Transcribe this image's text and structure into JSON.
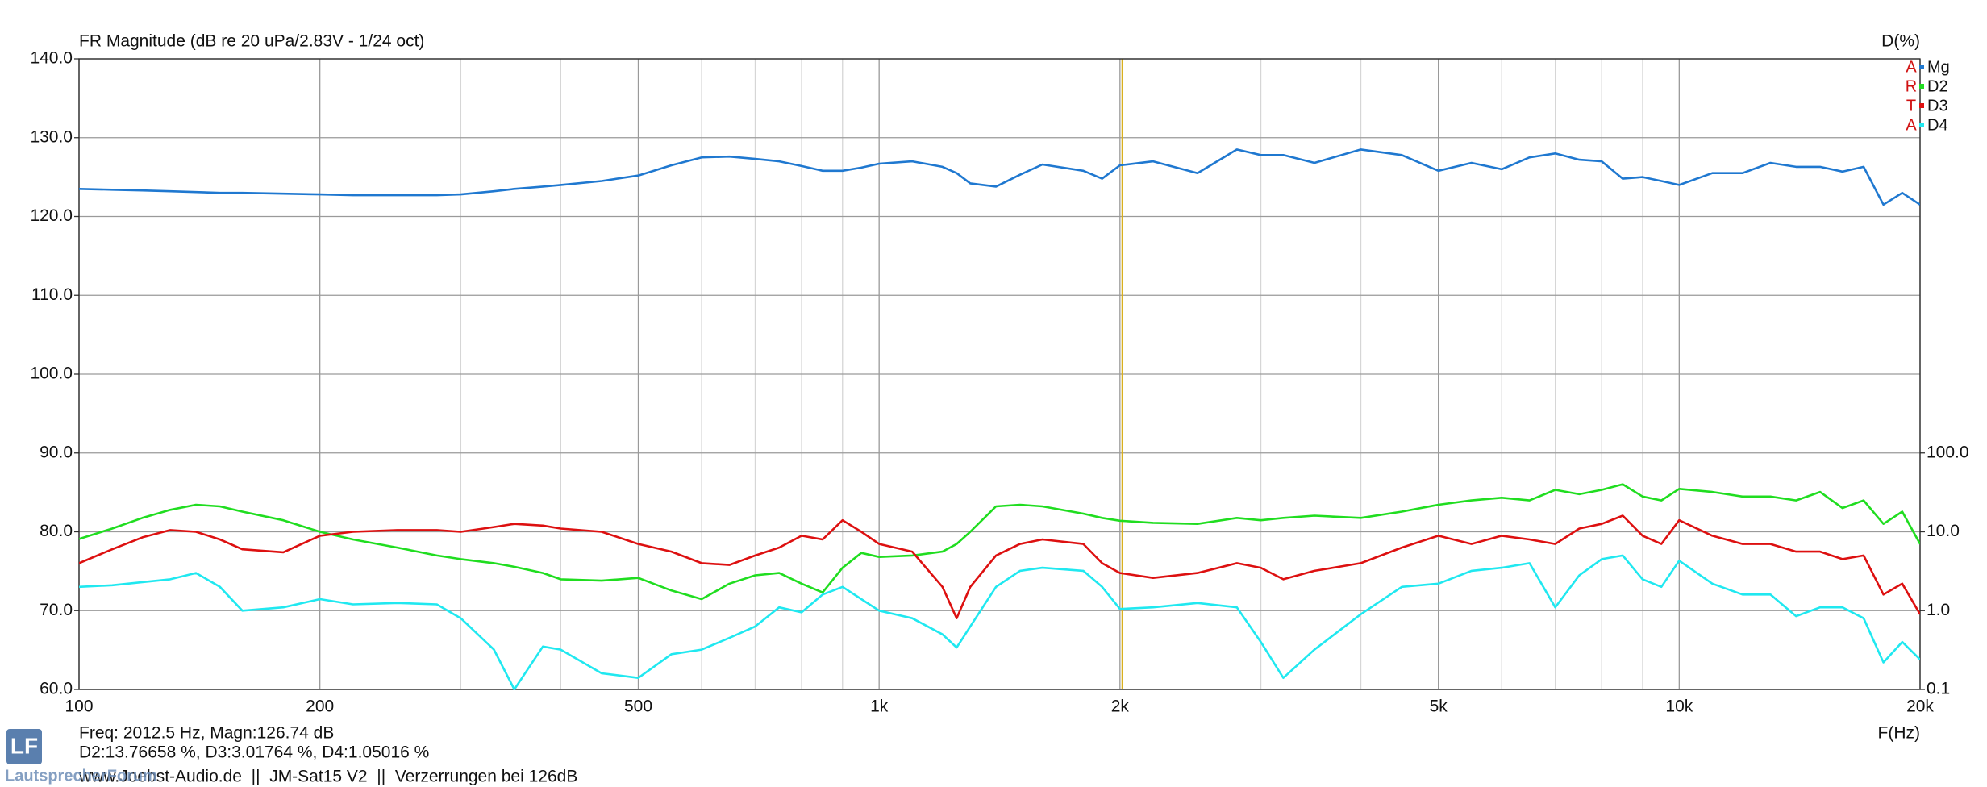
{
  "chart_data": {
    "type": "line",
    "title": "FR Magnitude (dB re 20 uPa/2.83V - 1/24 oct)",
    "y2_label": "D(%)",
    "x_label": "F(Hz)",
    "x_log": true,
    "y2_log": true,
    "grid": true,
    "legend_position": "top-right",
    "brand_letters": [
      "A",
      "R",
      "T",
      "A"
    ],
    "brand_color": "#d01010",
    "xlim": [
      100,
      20000
    ],
    "xticks": [
      100,
      200,
      500,
      {
        "value": 1000,
        "label": "1k"
      },
      {
        "value": 2000,
        "label": "2k"
      },
      {
        "value": 5000,
        "label": "5k"
      },
      {
        "value": 10000,
        "label": "10k"
      },
      {
        "value": 20000,
        "label": "20k"
      }
    ],
    "x_minor_ticks": [
      300,
      400,
      600,
      700,
      800,
      900,
      3000,
      4000,
      6000,
      7000,
      8000,
      9000
    ],
    "ylim": [
      60,
      140
    ],
    "yticks": [
      {
        "value": 60,
        "label": "60.0"
      },
      {
        "value": 70,
        "label": "70.0"
      },
      {
        "value": 80,
        "label": "80.0"
      },
      {
        "value": 90,
        "label": "90.0"
      },
      {
        "value": 100,
        "label": "100.0"
      },
      {
        "value": 110,
        "label": "110.0"
      },
      {
        "value": 120,
        "label": "120.0"
      },
      {
        "value": 130,
        "label": "130.0"
      },
      {
        "value": 140,
        "label": "140.0"
      }
    ],
    "y2lim": [
      0.1,
      10000000
    ],
    "y2ticks": [
      0.1,
      {
        "value": 1,
        "label": "1.0"
      },
      {
        "value": 10,
        "label": "10.0"
      },
      {
        "value": 100,
        "label": "100.0"
      }
    ],
    "cursor": 2012.5,
    "cursor_color": "#d8b020",
    "x": [
      100,
      110,
      120,
      130,
      140,
      150,
      160,
      180,
      200,
      220,
      250,
      280,
      300,
      330,
      350,
      380,
      400,
      450,
      500,
      550,
      600,
      650,
      700,
      750,
      800,
      850,
      900,
      950,
      1000,
      1100,
      1200,
      1250,
      1300,
      1400,
      1500,
      1600,
      1800,
      1900,
      2000,
      2200,
      2500,
      2800,
      3000,
      3200,
      3500,
      4000,
      4500,
      5000,
      5500,
      6000,
      6500,
      7000,
      7500,
      8000,
      8500,
      9000,
      9500,
      10000,
      11000,
      12000,
      13000,
      14000,
      15000,
      16000,
      17000,
      18000,
      19000,
      20000
    ],
    "series": [
      {
        "name": "Mg",
        "color": "#1f78d0",
        "values": [
          123.5,
          123.4,
          123.3,
          123.2,
          123.1,
          123,
          123,
          122.9,
          122.8,
          122.7,
          122.7,
          122.7,
          122.8,
          123.2,
          123.5,
          123.8,
          124,
          124.5,
          125.2,
          126.5,
          127.5,
          127.6,
          127.3,
          127,
          126.4,
          125.8,
          125.8,
          126.2,
          126.7,
          127,
          126.3,
          125.5,
          124.2,
          123.8,
          125.3,
          126.6,
          125.8,
          124.8,
          126.5,
          127,
          125.5,
          128.5,
          127.8,
          127.8,
          126.8,
          128.5,
          127.8,
          125.8,
          126.8,
          126,
          127.5,
          128,
          127.2,
          127,
          124.8,
          125,
          124.5,
          124,
          125.5,
          125.5,
          126.8,
          126.3,
          126.3,
          125.7,
          126.3,
          121.5,
          123,
          121.5
        ]
      },
      {
        "name": "D2",
        "color": "#20dd20",
        "axis": "y2",
        "values": [
          8.1,
          11,
          15,
          19,
          22,
          21,
          18,
          14,
          10,
          8,
          6.3,
          5,
          4.5,
          4,
          3.6,
          3,
          2.5,
          2.4,
          2.6,
          1.8,
          1.4,
          2.2,
          2.8,
          3,
          2.2,
          1.7,
          3.5,
          5.4,
          4.8,
          5,
          5.6,
          7,
          10,
          21,
          22,
          21,
          17,
          15,
          13.8,
          13,
          12.6,
          15,
          14,
          15,
          16,
          15,
          18,
          22,
          25,
          27,
          25,
          34,
          30,
          34,
          40,
          28,
          25,
          35,
          32,
          28,
          28,
          25,
          32,
          20,
          25,
          12.6,
          18,
          7
        ]
      },
      {
        "name": "D3",
        "color": "#dd1010",
        "axis": "y2",
        "values": [
          4,
          6,
          8.5,
          10.5,
          10,
          8,
          6,
          5.5,
          8.9,
          10,
          10.5,
          10.5,
          10,
          11.5,
          12.6,
          12,
          11,
          10,
          7,
          5.6,
          4,
          3.8,
          5,
          6.3,
          8.9,
          8,
          14,
          10,
          7,
          5.6,
          2,
          0.8,
          2,
          5,
          7,
          8,
          7,
          4,
          3,
          2.6,
          3,
          4,
          3.5,
          2.5,
          3.2,
          4,
          6.3,
          8.9,
          7,
          8.9,
          8,
          7,
          11,
          12.6,
          16,
          8.9,
          7,
          14,
          8.9,
          7,
          7,
          5.6,
          5.6,
          4.5,
          5,
          1.6,
          2.2,
          0.9
        ]
      },
      {
        "name": "D4",
        "color": "#20e8f0",
        "axis": "y2",
        "values": [
          2,
          2.1,
          2.3,
          2.5,
          3,
          2,
          1,
          1.1,
          1.4,
          1.2,
          1.25,
          1.2,
          0.8,
          0.32,
          0.1,
          0.35,
          0.32,
          0.16,
          0.14,
          0.28,
          0.32,
          0.45,
          0.63,
          1.1,
          0.95,
          1.6,
          2,
          1.4,
          1,
          0.8,
          0.5,
          0.34,
          0.63,
          2,
          3.2,
          3.5,
          3.2,
          2,
          1.05,
          1.1,
          1.25,
          1.1,
          0.4,
          0.14,
          0.32,
          0.9,
          2,
          2.2,
          3.2,
          3.5,
          4,
          1.1,
          2.8,
          4.5,
          5,
          2.5,
          2,
          4.3,
          2.2,
          1.6,
          1.6,
          0.85,
          1.1,
          1.1,
          0.8,
          0.22,
          0.4,
          0.24
        ]
      }
    ],
    "readout": [
      "Freq: 2012.5 Hz, Magn:126.74 dB",
      "D2:13.76658 %, D3:3.01764 %, D4:1.05016 %"
    ],
    "footer": "www.Joebst-Audio.de  ||  JM-Sat15 V2  ||  Verzerrungen bei 126dB",
    "logo": "LF",
    "logo_text": "LautsprecherForum"
  }
}
